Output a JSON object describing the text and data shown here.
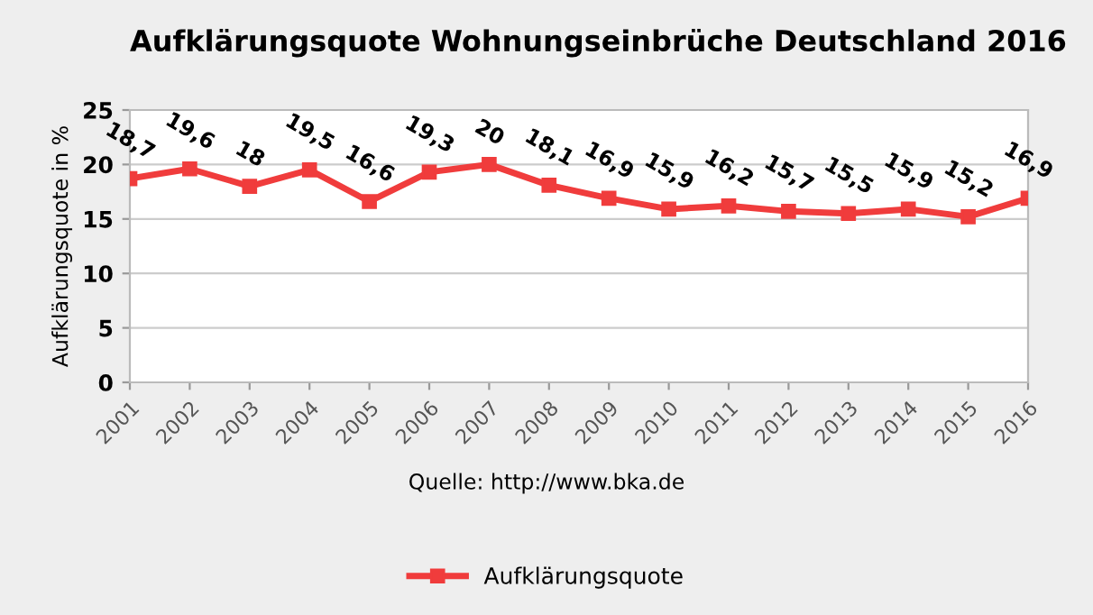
{
  "chart_data": {
    "type": "line",
    "title": "Aufklärungsquote Wohnungseinbrüche Deutschland 2016",
    "ylabel": "Aufklärungsquote in %",
    "categories": [
      "2001",
      "2002",
      "2003",
      "2004",
      "2005",
      "2006",
      "2007",
      "2008",
      "2009",
      "2010",
      "2011",
      "2012",
      "2013",
      "2014",
      "2015",
      "2016"
    ],
    "series": [
      {
        "name": "Aufklärungsquote",
        "color": "#f03c3c",
        "values": [
          18.7,
          19.6,
          18,
          19.5,
          16.6,
          19.3,
          20,
          18.1,
          16.9,
          15.9,
          16.2,
          15.7,
          15.5,
          15.9,
          15.2,
          16.9
        ],
        "value_labels": [
          "18,7",
          "19,6",
          "18",
          "19,5",
          "16,6",
          "19,3",
          "20",
          "18,1",
          "16,9",
          "15,9",
          "16,2",
          "15,7",
          "15,5",
          "15,9",
          "15,2",
          "16,9"
        ]
      }
    ],
    "ylim": [
      0,
      25
    ],
    "yticks": [
      0,
      5,
      10,
      15,
      20,
      25
    ],
    "grid": "y",
    "legend": "bottom",
    "marker": "square",
    "line_style": "solid",
    "annotations": [
      "Quelle: http://www.bka.de"
    ]
  }
}
